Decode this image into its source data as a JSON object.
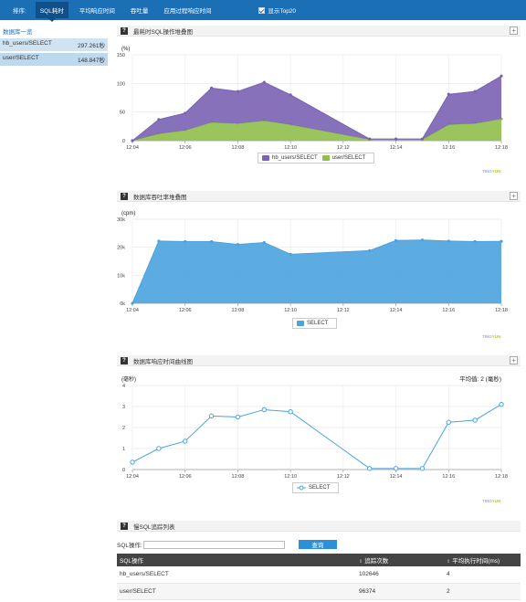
{
  "topbar": {
    "sort_label": "排序:",
    "tabs": [
      "SQL耗时",
      "平均响应时间",
      "吞吐量",
      "应用过程响应时间"
    ],
    "checkbox_label": "显示Top20"
  },
  "sidebar": {
    "heading": "数据库一览",
    "items": [
      {
        "name": "hb_users/SELECT",
        "value": "297.261秒"
      },
      {
        "name": "user/SELECT",
        "value": "148.847秒"
      }
    ]
  },
  "brand": {
    "part1": "TING",
    "part2": "YUN"
  },
  "panels": {
    "p1": {
      "title": "最耗时SQL操作堆叠图"
    },
    "p2": {
      "title": "数据库吞吐率堆叠图"
    },
    "p3": {
      "title": "数据库响应时间曲线图"
    },
    "p4": {
      "title": "慢SQL追踪列表"
    }
  },
  "search": {
    "label": "SQL操作:",
    "button": "查询",
    "value": ""
  },
  "table": {
    "headers": [
      "SQL操作",
      "追踪次数",
      "平均执行时间(ms)"
    ],
    "rows": [
      [
        "hb_users/SELECT",
        "102646",
        "4"
      ],
      [
        "user/SELECT",
        "96374",
        "2"
      ]
    ]
  },
  "colors": {
    "topbar": "#1b6fb4",
    "purple": "#7a62b4",
    "green": "#8fbf4a",
    "blue": "#4aa3df"
  },
  "chart_data": [
    {
      "type": "area",
      "stacked": true,
      "title": "最耗时SQL操作堆叠图",
      "ylabel": "(%)",
      "xlabel": "",
      "ylim": [
        0,
        150
      ],
      "yticks": [
        0,
        50,
        100,
        150
      ],
      "xtick_labels": [
        "12:04",
        "12:06",
        "12:08",
        "12:10",
        "12:12",
        "12:14",
        "12:16",
        "12:18"
      ],
      "x": [
        "12:04",
        "12:05",
        "12:06",
        "12:07",
        "12:08",
        "12:09",
        "12:10",
        "12:13",
        "12:14",
        "12:15",
        "12:16",
        "12:17",
        "12:18"
      ],
      "series": [
        {
          "name": "user/SELECT",
          "color": "#8fbf4a",
          "values": [
            0,
            12,
            18,
            32,
            30,
            35,
            28,
            2,
            2,
            2,
            28,
            30,
            38
          ]
        },
        {
          "name": "hb_users/SELECT",
          "color": "#7a62b4",
          "values": [
            0,
            25,
            30,
            60,
            56,
            67,
            52,
            1,
            1,
            1,
            53,
            56,
            75
          ]
        }
      ],
      "legend": "bottom-center",
      "grid": true
    },
    {
      "type": "area",
      "title": "数据库吞吐率堆叠图",
      "ylabel": "(cpm)",
      "ylim": [
        0,
        30000
      ],
      "yticks": [
        0,
        10000,
        20000,
        30000
      ],
      "ytick_labels": [
        "0k",
        "10k",
        "20k",
        "30k"
      ],
      "xtick_labels": [
        "12:04",
        "12:06",
        "12:08",
        "12:10",
        "12:12",
        "12:14",
        "12:16",
        "12:18"
      ],
      "x": [
        "12:04",
        "12:05",
        "12:06",
        "12:07",
        "12:08",
        "12:09",
        "12:10",
        "12:13",
        "12:14",
        "12:15",
        "12:16",
        "12:17",
        "12:18"
      ],
      "series": [
        {
          "name": "SELECT",
          "color": "#4aa3df",
          "values": [
            0,
            22200,
            22000,
            22000,
            21000,
            21700,
            17500,
            18800,
            22400,
            22600,
            22200,
            22000,
            22100
          ]
        }
      ],
      "legend": "bottom-center",
      "grid": true
    },
    {
      "type": "line",
      "title": "数据库响应时间曲线图",
      "ylabel": "(毫秒)",
      "annotation": "平均值: 2 (毫秒)",
      "ylim": [
        0,
        4
      ],
      "yticks": [
        0,
        1,
        2,
        3,
        4
      ],
      "xtick_labels": [
        "12:04",
        "12:06",
        "12:08",
        "12:10",
        "12:12",
        "12:14",
        "12:16",
        "12:18"
      ],
      "x": [
        "12:04",
        "12:05",
        "12:06",
        "12:07",
        "12:08",
        "12:09",
        "12:10",
        "12:13",
        "12:14",
        "12:15",
        "12:16",
        "12:17",
        "12:18"
      ],
      "series": [
        {
          "name": "SELECT",
          "color": "#4aa3df",
          "values": [
            0.35,
            1.0,
            1.35,
            2.55,
            2.5,
            2.85,
            2.75,
            0.05,
            0.05,
            0.05,
            2.25,
            2.35,
            3.1
          ]
        }
      ],
      "legend": "bottom-center",
      "grid": true
    }
  ]
}
